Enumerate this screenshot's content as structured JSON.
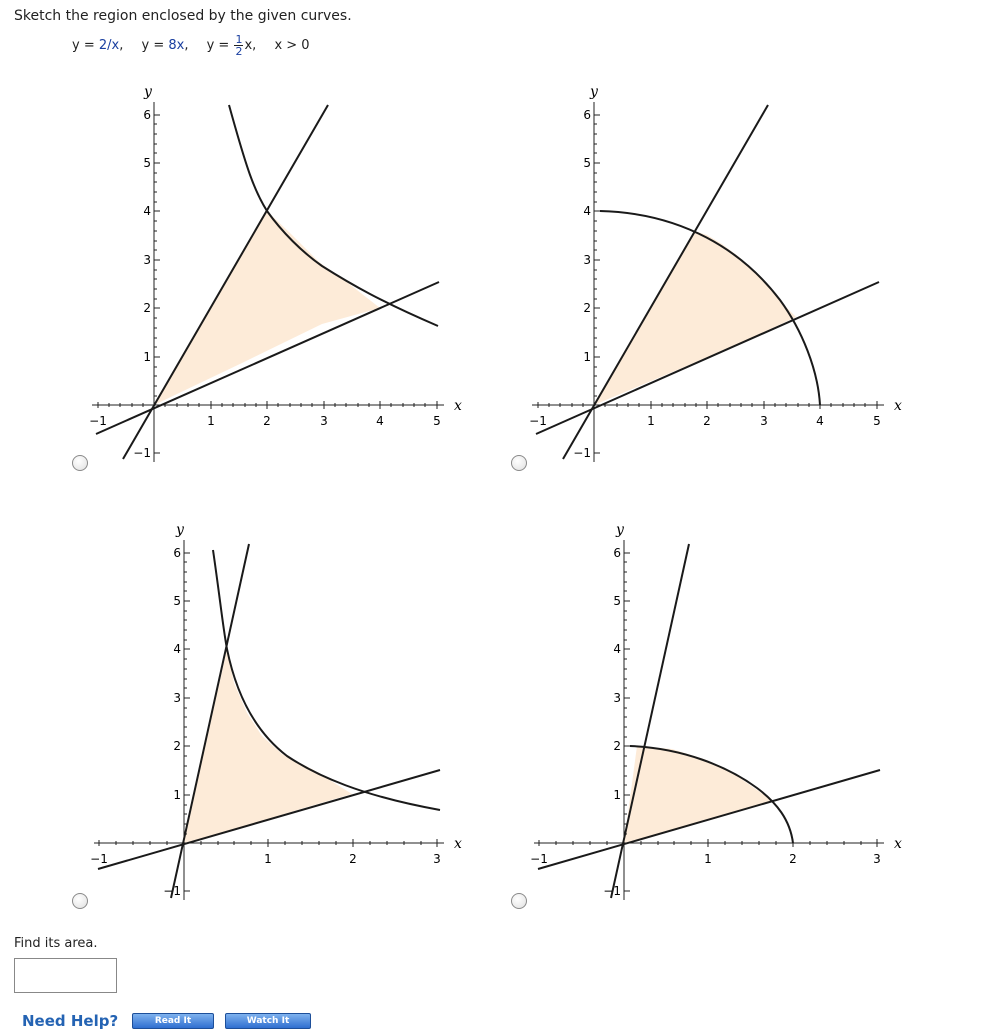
{
  "question": {
    "prompt": "Sketch the region enclosed by the given curves.",
    "eq1_prefix": "y = ",
    "eq1_value": "2/x",
    "eq1_suffix": ",",
    "eq2_prefix": "y = ",
    "eq2_value": "8x",
    "eq2_suffix": ",",
    "eq3_prefix": "y = ",
    "eq3_num": "1",
    "eq3_den": "2",
    "eq3_suffix": "x,",
    "eq4": "x > 0"
  },
  "graphs": [
    {
      "id": "a",
      "xticks": [
        "1",
        "2",
        "3",
        "4",
        "5"
      ],
      "yticks": [
        "1",
        "2",
        "3",
        "4",
        "5",
        "6"
      ],
      "neg_x": "−1",
      "neg_y": "−1",
      "xlabel": "x",
      "ylabel": "y",
      "shaded_color": "#fdebd8"
    },
    {
      "id": "b",
      "xticks": [
        "1",
        "2",
        "3",
        "4",
        "5"
      ],
      "yticks": [
        "1",
        "2",
        "3",
        "4",
        "5",
        "6"
      ],
      "neg_x": "−1",
      "neg_y": "−1",
      "xlabel": "x",
      "ylabel": "y",
      "shaded_color": "#fdebd8"
    },
    {
      "id": "c",
      "xticks": [
        "1",
        "2",
        "3"
      ],
      "yticks": [
        "1",
        "2",
        "3",
        "4",
        "5",
        "6"
      ],
      "neg_x": "−1",
      "neg_y": "−1",
      "xlabel": "x",
      "ylabel": "y",
      "shaded_color": "#fdebd8"
    },
    {
      "id": "d",
      "xticks": [
        "1",
        "2",
        "3"
      ],
      "yticks": [
        "1",
        "2",
        "3",
        "4",
        "5",
        "6"
      ],
      "neg_x": "−1",
      "neg_y": "−1",
      "xlabel": "x",
      "ylabel": "y",
      "shaded_color": "#fdebd8"
    }
  ],
  "area": {
    "label": "Find its area.",
    "value": ""
  },
  "help": {
    "label": "Need Help?",
    "read_label": "Read It",
    "watch_label": "Watch It"
  },
  "colors": {
    "shade": "#fdebd8",
    "curve": "#1a1a1a",
    "link": "#2463b3"
  }
}
